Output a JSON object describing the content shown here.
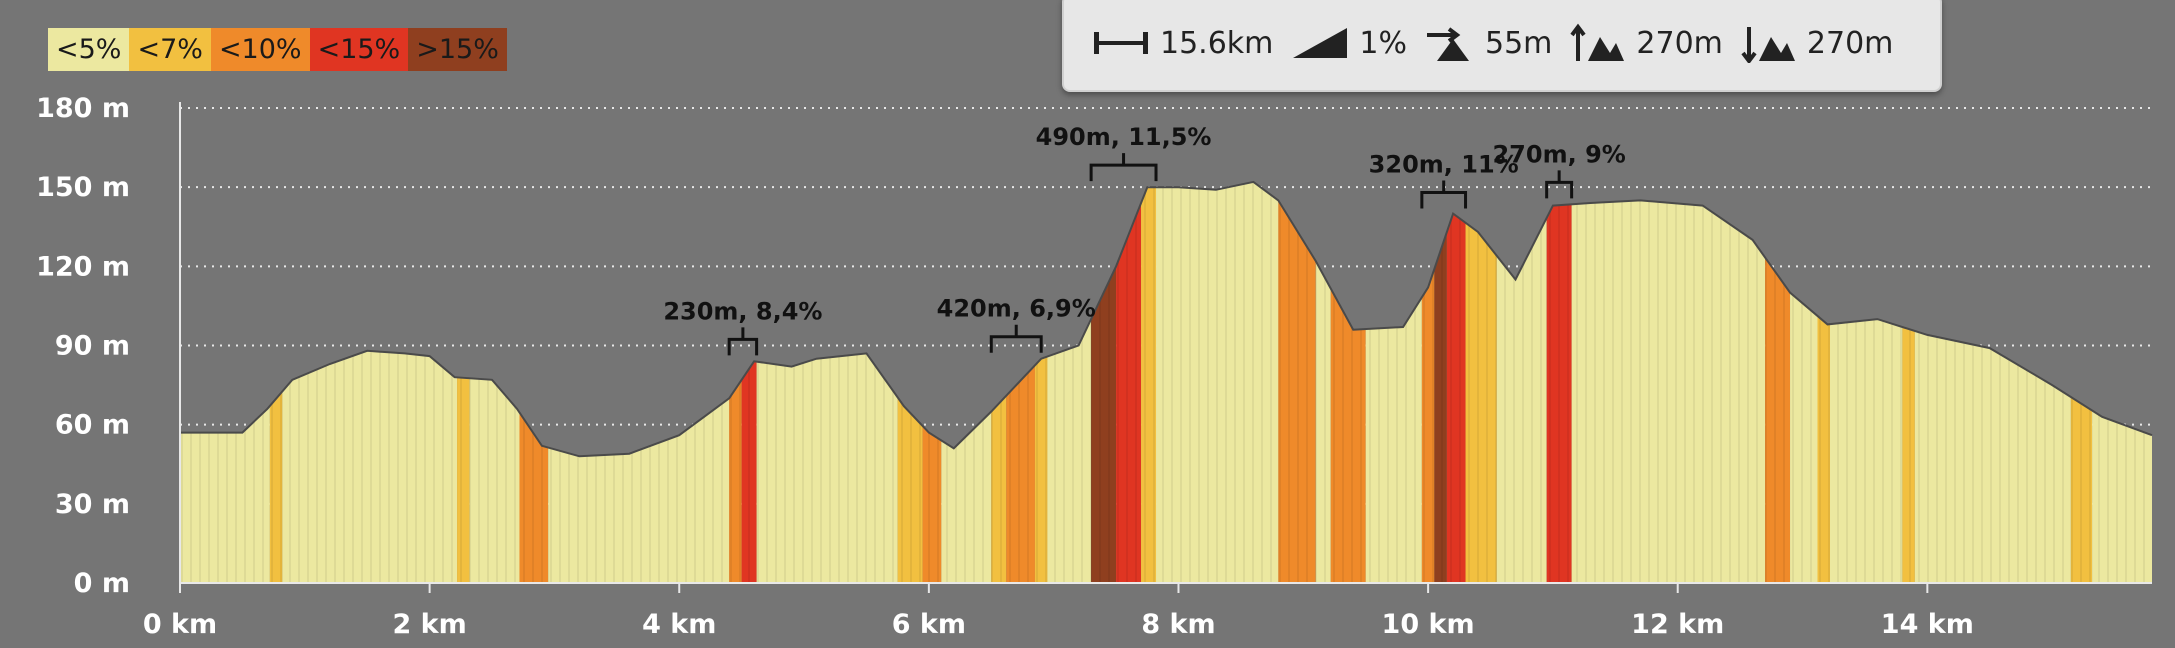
{
  "legend": [
    {
      "label": "<5%",
      "color": "#ece8a0"
    },
    {
      "label": "<7%",
      "color": "#f2c040"
    },
    {
      "label": "<10%",
      "color": "#ef8a2a"
    },
    {
      "label": "<15%",
      "color": "#e03522"
    },
    {
      "label": ">15%",
      "color": "#8f3f1f"
    }
  ],
  "stats": {
    "distance": "15.6km",
    "avg_grade": "1%",
    "max_elevation_gain": "55m",
    "total_ascent": "270m",
    "total_descent": "270m"
  },
  "chart_data": {
    "type": "area",
    "xlabel": "",
    "ylabel": "",
    "xlim": [
      0,
      15.8
    ],
    "ylim": [
      0,
      180
    ],
    "x_ticks": [
      0,
      2,
      4,
      6,
      8,
      10,
      12,
      14
    ],
    "x_tick_labels": [
      "0 km",
      "2 km",
      "4 km",
      "6 km",
      "8 km",
      "10 km",
      "12 km",
      "14 km"
    ],
    "y_ticks": [
      0,
      30,
      60,
      90,
      120,
      150,
      180
    ],
    "y_tick_labels": [
      "0 m",
      "30 m",
      "60 m",
      "90 m",
      "120 m",
      "150 m",
      "180 m"
    ],
    "grid": "horizontal dotted",
    "profile": [
      [
        0,
        57
      ],
      [
        0.3,
        57
      ],
      [
        0.5,
        57
      ],
      [
        0.7,
        66
      ],
      [
        0.9,
        77
      ],
      [
        1.2,
        83
      ],
      [
        1.5,
        88
      ],
      [
        1.8,
        87
      ],
      [
        2.0,
        86
      ],
      [
        2.2,
        78
      ],
      [
        2.5,
        77
      ],
      [
        2.7,
        66
      ],
      [
        2.9,
        52
      ],
      [
        3.2,
        48
      ],
      [
        3.6,
        49
      ],
      [
        4.0,
        56
      ],
      [
        4.4,
        70
      ],
      [
        4.6,
        84
      ],
      [
        4.9,
        82
      ],
      [
        5.1,
        85
      ],
      [
        5.5,
        87
      ],
      [
        5.8,
        67
      ],
      [
        6.0,
        57
      ],
      [
        6.2,
        51
      ],
      [
        6.5,
        65
      ],
      [
        6.9,
        85
      ],
      [
        7.2,
        90
      ],
      [
        7.5,
        120
      ],
      [
        7.75,
        150
      ],
      [
        8.0,
        150
      ],
      [
        8.3,
        149
      ],
      [
        8.6,
        152
      ],
      [
        8.8,
        145
      ],
      [
        9.1,
        122
      ],
      [
        9.4,
        96
      ],
      [
        9.8,
        97
      ],
      [
        10.0,
        112
      ],
      [
        10.2,
        140
      ],
      [
        10.4,
        133
      ],
      [
        10.7,
        115
      ],
      [
        11.0,
        143
      ],
      [
        11.3,
        144
      ],
      [
        11.7,
        145
      ],
      [
        12.2,
        143
      ],
      [
        12.6,
        130
      ],
      [
        12.9,
        110
      ],
      [
        13.2,
        98
      ],
      [
        13.6,
        100
      ],
      [
        14.0,
        94
      ],
      [
        14.5,
        89
      ],
      [
        15.0,
        75
      ],
      [
        15.4,
        63
      ],
      [
        15.8,
        56
      ]
    ],
    "grade_segments": [
      [
        0,
        0.72,
        0
      ],
      [
        0.72,
        0.82,
        1
      ],
      [
        0.82,
        2.22,
        0
      ],
      [
        2.22,
        2.32,
        1
      ],
      [
        2.32,
        2.72,
        0
      ],
      [
        2.72,
        2.95,
        2
      ],
      [
        2.95,
        4.4,
        0
      ],
      [
        4.4,
        4.5,
        2
      ],
      [
        4.5,
        4.62,
        3
      ],
      [
        4.62,
        5.75,
        0
      ],
      [
        5.75,
        5.95,
        1
      ],
      [
        5.95,
        6.1,
        2
      ],
      [
        6.1,
        6.5,
        0
      ],
      [
        6.5,
        6.62,
        1
      ],
      [
        6.62,
        6.85,
        2
      ],
      [
        6.85,
        6.95,
        1
      ],
      [
        6.95,
        7.3,
        0
      ],
      [
        7.3,
        7.5,
        4
      ],
      [
        7.5,
        7.7,
        3
      ],
      [
        7.7,
        7.82,
        1
      ],
      [
        7.82,
        8.8,
        0
      ],
      [
        8.8,
        9.1,
        2
      ],
      [
        9.1,
        9.22,
        0
      ],
      [
        9.22,
        9.5,
        2
      ],
      [
        9.5,
        9.95,
        0
      ],
      [
        9.95,
        10.05,
        2
      ],
      [
        10.05,
        10.15,
        4
      ],
      [
        10.15,
        10.3,
        3
      ],
      [
        10.3,
        10.55,
        1
      ],
      [
        10.55,
        10.95,
        0
      ],
      [
        10.95,
        11.15,
        3
      ],
      [
        11.15,
        12.7,
        0
      ],
      [
        12.7,
        12.9,
        2
      ],
      [
        12.9,
        13.12,
        0
      ],
      [
        13.12,
        13.22,
        1
      ],
      [
        13.22,
        13.8,
        0
      ],
      [
        13.8,
        13.9,
        1
      ],
      [
        13.9,
        15.15,
        0
      ],
      [
        15.15,
        15.32,
        1
      ],
      [
        15.32,
        15.8,
        0
      ]
    ],
    "annotations": [
      {
        "label": "230m, 8,4%",
        "x_start": 4.4,
        "x_end": 4.62
      },
      {
        "label": "420m, 6,9%",
        "x_start": 6.5,
        "x_end": 6.9
      },
      {
        "label": "490m, 11,5%",
        "x_start": 7.3,
        "x_end": 7.82
      },
      {
        "label": "320m, 11%",
        "x_start": 9.95,
        "x_end": 10.3
      },
      {
        "label": "270m, 9%",
        "x_start": 10.95,
        "x_end": 11.15
      }
    ]
  }
}
